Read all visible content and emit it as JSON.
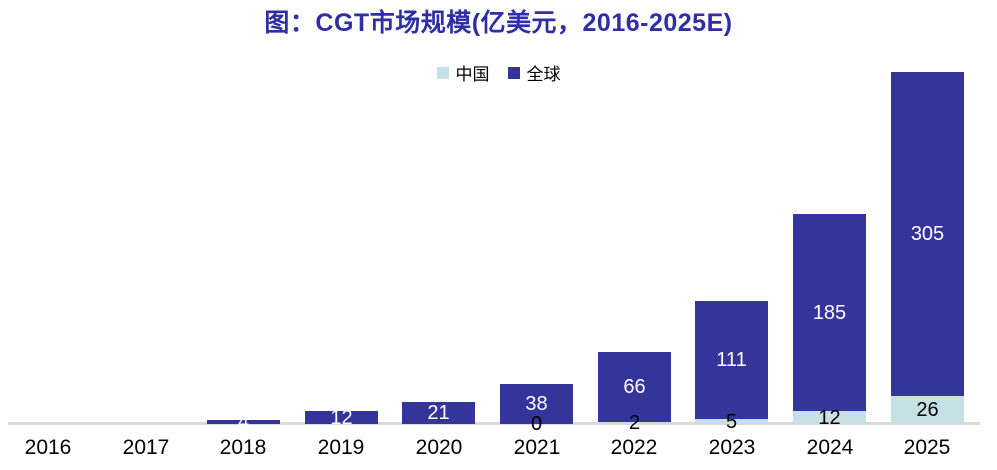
{
  "title": "图：CGT市场规模(亿美元，2016-2025E)",
  "colors": {
    "title": "#2E2EA6",
    "china_series": "#C5E1E6",
    "global_series": "#34349B",
    "axis_line": "#D9D9D9",
    "china_label_text": "#000000",
    "global_label_text": "#FFFFFF",
    "tick_text": "#000000"
  },
  "legend": [
    {
      "label": "中国",
      "color": "#C5E1E6"
    },
    {
      "label": "全球",
      "color": "#34349B"
    }
  ],
  "chart_data": {
    "type": "bar",
    "stacked": true,
    "title": "图：CGT市场规模(亿美元，2016-2025E)",
    "xlabel": "",
    "ylabel": "",
    "categories": [
      "2016",
      "2017",
      "2018",
      "2019",
      "2020",
      "2021",
      "2022",
      "2023",
      "2024",
      "2025"
    ],
    "series": [
      {
        "name": "中国",
        "color": "#C5E1E6",
        "label_color": "#000000",
        "values": [
          null,
          null,
          null,
          null,
          null,
          0,
          2,
          5,
          12,
          26
        ]
      },
      {
        "name": "全球",
        "color": "#34349B",
        "label_color": "#FFFFFF",
        "values": [
          null,
          null,
          4,
          12,
          21,
          38,
          66,
          111,
          185,
          305
        ]
      }
    ],
    "ylim": [
      0,
      331
    ],
    "grid": false,
    "legend_position": "top",
    "value_labels_shown": true
  }
}
